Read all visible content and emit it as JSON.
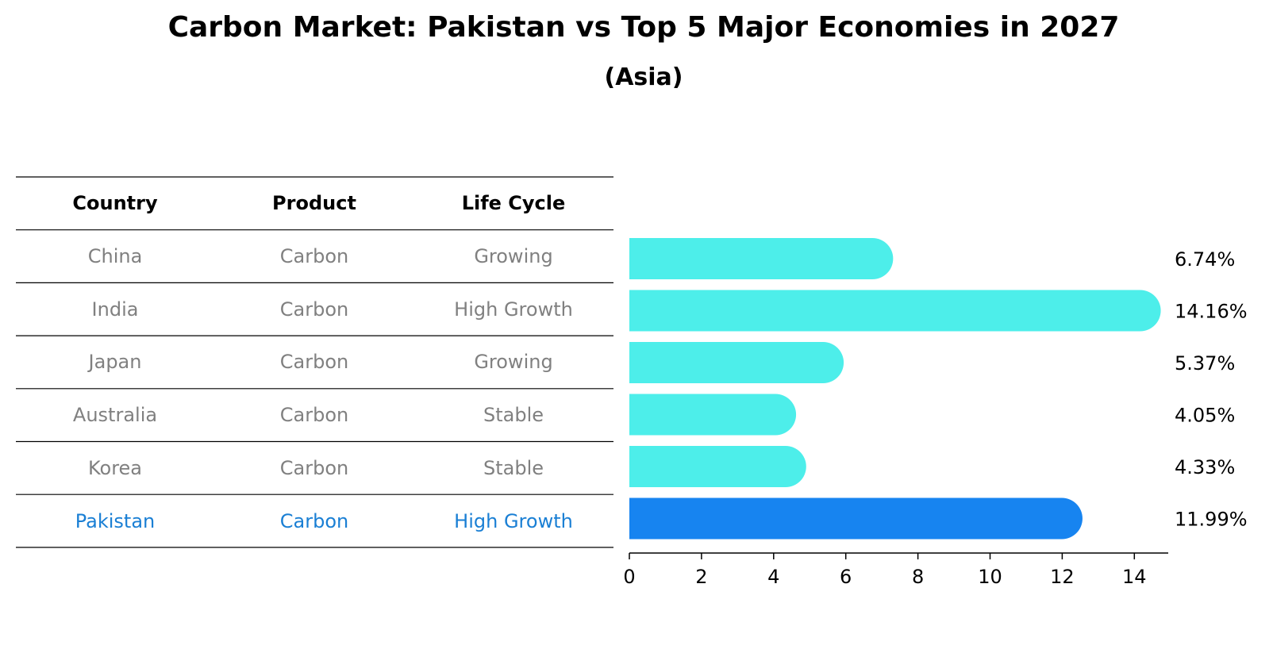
{
  "title": "Carbon Market: Pakistan vs Top 5 Major Economies in 2027",
  "subtitle": "(Asia)",
  "table": {
    "headers": [
      "Country",
      "Product",
      "Life Cycle"
    ],
    "rows": [
      {
        "country": "China",
        "product": "Carbon",
        "life_cycle": "Growing"
      },
      {
        "country": "India",
        "product": "Carbon",
        "life_cycle": "High Growth"
      },
      {
        "country": "Japan",
        "product": "Carbon",
        "life_cycle": "Growing"
      },
      {
        "country": "Australia",
        "product": "Carbon",
        "life_cycle": "Stable"
      },
      {
        "country": "Korea",
        "product": "Carbon",
        "life_cycle": "Stable"
      },
      {
        "country": "Pakistan",
        "product": "Carbon",
        "life_cycle": "High Growth"
      }
    ]
  },
  "colors": {
    "row_text": "#808080",
    "highlight_text": "#1a7fd4",
    "bar": "#4deeea",
    "highlight_bar": "#1784f0"
  },
  "chart_data": {
    "type": "bar",
    "orientation": "horizontal",
    "categories": [
      "China",
      "India",
      "Japan",
      "Australia",
      "Korea",
      "Pakistan"
    ],
    "values": [
      6.74,
      14.16,
      5.37,
      4.05,
      4.33,
      11.99
    ],
    "labels": [
      "6.74%",
      "14.16%",
      "5.37%",
      "4.05%",
      "4.33%",
      "11.99%"
    ],
    "highlight": "Pakistan",
    "xlim": [
      0,
      15
    ],
    "xticks": [
      0,
      2,
      4,
      6,
      8,
      10,
      12,
      14
    ],
    "grid": false
  }
}
